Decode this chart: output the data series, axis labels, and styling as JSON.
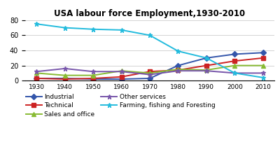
{
  "title": "USA labour force Employment,1930-2010",
  "years": [
    1930,
    1940,
    1950,
    1960,
    1970,
    1980,
    1990,
    2000,
    2010
  ],
  "series": {
    "Industrial": [
      3,
      3,
      2,
      2,
      3,
      20,
      30,
      35,
      37
    ],
    "Technical": [
      3,
      2,
      3,
      5,
      12,
      14,
      20,
      26,
      30
    ],
    "Sales and office": [
      10,
      7,
      7,
      13,
      10,
      15,
      14,
      20,
      20
    ],
    "Other services": [
      12,
      16,
      12,
      12,
      8,
      13,
      13,
      10,
      10
    ],
    "Farming, fishing and Foresting": [
      75,
      70,
      68,
      67,
      60,
      39,
      30,
      10,
      4
    ]
  },
  "colors": {
    "Industrial": "#3355aa",
    "Technical": "#cc2222",
    "Sales and office": "#88bb33",
    "Other services": "#7755aa",
    "Farming, fishing and Foresting": "#22bbdd"
  },
  "markers": {
    "Industrial": "D",
    "Technical": "s",
    "Sales and office": "^",
    "Other services": "*",
    "Farming, fishing and Foresting": "*"
  },
  "marker_sizes": {
    "Industrial": 4,
    "Technical": 4,
    "Sales and office": 4,
    "Other services": 5,
    "Farming, fishing and Foresting": 5
  },
  "ylim": [
    0,
    80
  ],
  "yticks": [
    0,
    20,
    40,
    60,
    80
  ],
  "background_color": "#ffffff"
}
